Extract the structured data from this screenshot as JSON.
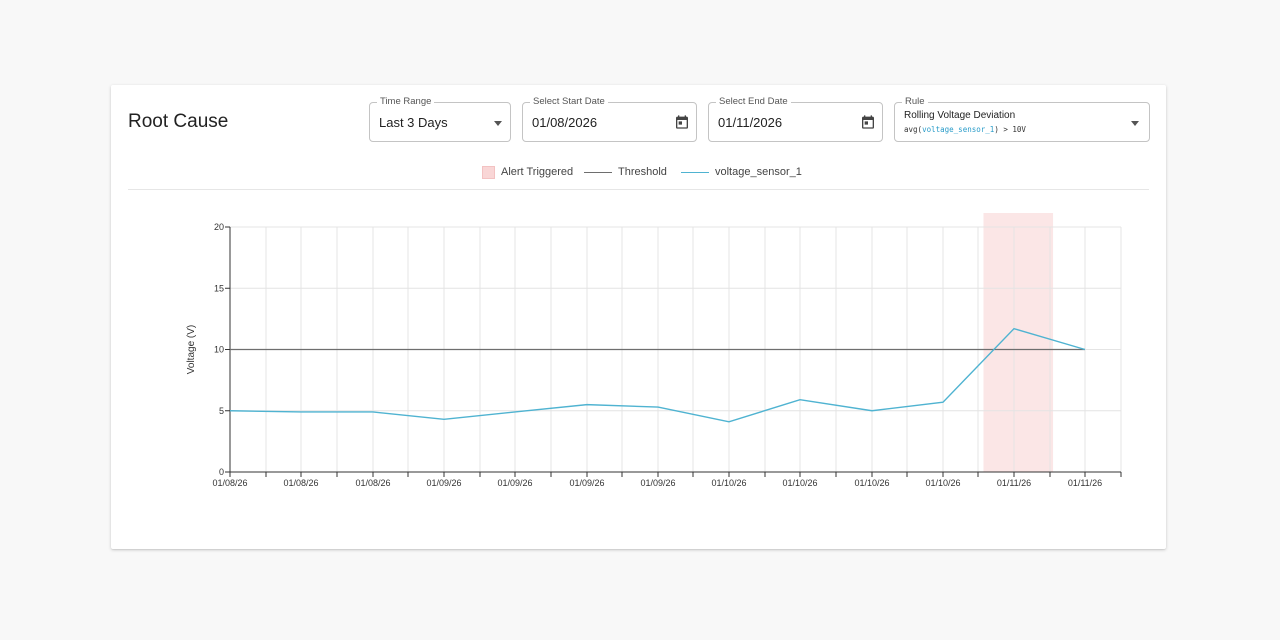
{
  "header": {
    "title": "Root Cause"
  },
  "filters": {
    "time_range": {
      "label": "Time Range",
      "value": "Last 3 Days"
    },
    "start_date": {
      "label": "Select Start Date",
      "value": "01/08/2026"
    },
    "end_date": {
      "label": "Select End Date",
      "value": "01/11/2026"
    },
    "rule": {
      "label": "Rule",
      "value": "Rolling Voltage Deviation",
      "expr_prefix": "avg(",
      "expr_var": "voltage_sensor_1",
      "expr_suffix": ") > 10V"
    }
  },
  "legend": {
    "alert": "Alert Triggered",
    "threshold": "Threshold",
    "series": "voltage_sensor_1"
  },
  "colors": {
    "series": "#4fb3d1",
    "threshold": "#6e6e6e",
    "alert_fill": "#f9d6d6",
    "grid": "#e4e4e4",
    "axis": "#333333"
  },
  "chart_data": {
    "type": "line",
    "ylabel": "Voltage (V)",
    "xlabel": "",
    "ylim": [
      0,
      20
    ],
    "yticks": [
      0,
      5,
      10,
      15,
      20
    ],
    "x_tick_labels": [
      "01/08/26",
      "01/08/26",
      "01/08/26",
      "01/09/26",
      "01/09/26",
      "01/09/26",
      "01/09/26",
      "01/10/26",
      "01/10/26",
      "01/10/26",
      "01/10/26",
      "01/11/26",
      "01/11/26"
    ],
    "grid": true,
    "threshold": 10,
    "series": [
      {
        "name": "voltage_sensor_1",
        "values": [
          5.0,
          4.9,
          4.9,
          4.3,
          4.9,
          5.5,
          5.3,
          4.1,
          5.9,
          5.0,
          5.7,
          11.7,
          10.0
        ]
      }
    ],
    "alert_region": {
      "from_index": 10.57,
      "to_index": 11.55
    }
  }
}
